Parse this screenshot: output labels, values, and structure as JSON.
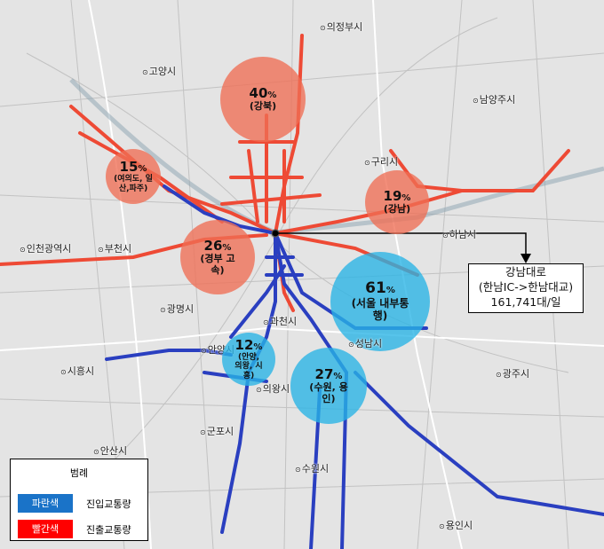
{
  "colors": {
    "inflow": "#1a73c8",
    "outflow": "#ff0000",
    "inflow_roads": "#2a3fc0",
    "outflow_roads": "#ee4a35",
    "circle_red": "#f06e55",
    "circle_blue": "#28b4e6"
  },
  "cities": [
    "의정부시",
    "고양시",
    "구리시",
    "남양주시",
    "인천광역시",
    "부천시",
    "광명시",
    "하남시",
    "과천시",
    "성남시",
    "안양시",
    "의왕시",
    "시흥시",
    "군포시",
    "안산시",
    "수원시",
    "광주시",
    "용인시"
  ],
  "circles": [
    {
      "pct": "40",
      "unit": "%",
      "label": "(강북)",
      "type": "outflow"
    },
    {
      "pct": "15",
      "unit": "%",
      "label": "(여의도, 일산,파주)",
      "type": "outflow"
    },
    {
      "pct": "19",
      "unit": "%",
      "label": "(강남)",
      "type": "outflow"
    },
    {
      "pct": "26",
      "unit": "%",
      "label": "(경부 고속)",
      "type": "outflow"
    },
    {
      "pct": "61",
      "unit": "%",
      "label": "(서울 내부통행)",
      "type": "inflow"
    },
    {
      "pct": "12",
      "unit": "%",
      "label": "(안양, 의왕, 시흥)",
      "type": "inflow"
    },
    {
      "pct": "27",
      "unit": "%",
      "label": "(수원, 용인)",
      "type": "inflow"
    }
  ],
  "callout": {
    "line1": "강남대로",
    "line2": "(한남IC->한남대교)",
    "line3": "161,741대/일"
  },
  "legend": {
    "title": "범례",
    "blue_label": "파란색",
    "blue_meaning": "진입교통량",
    "red_label": "빨간색",
    "red_meaning": "진출교통량"
  }
}
